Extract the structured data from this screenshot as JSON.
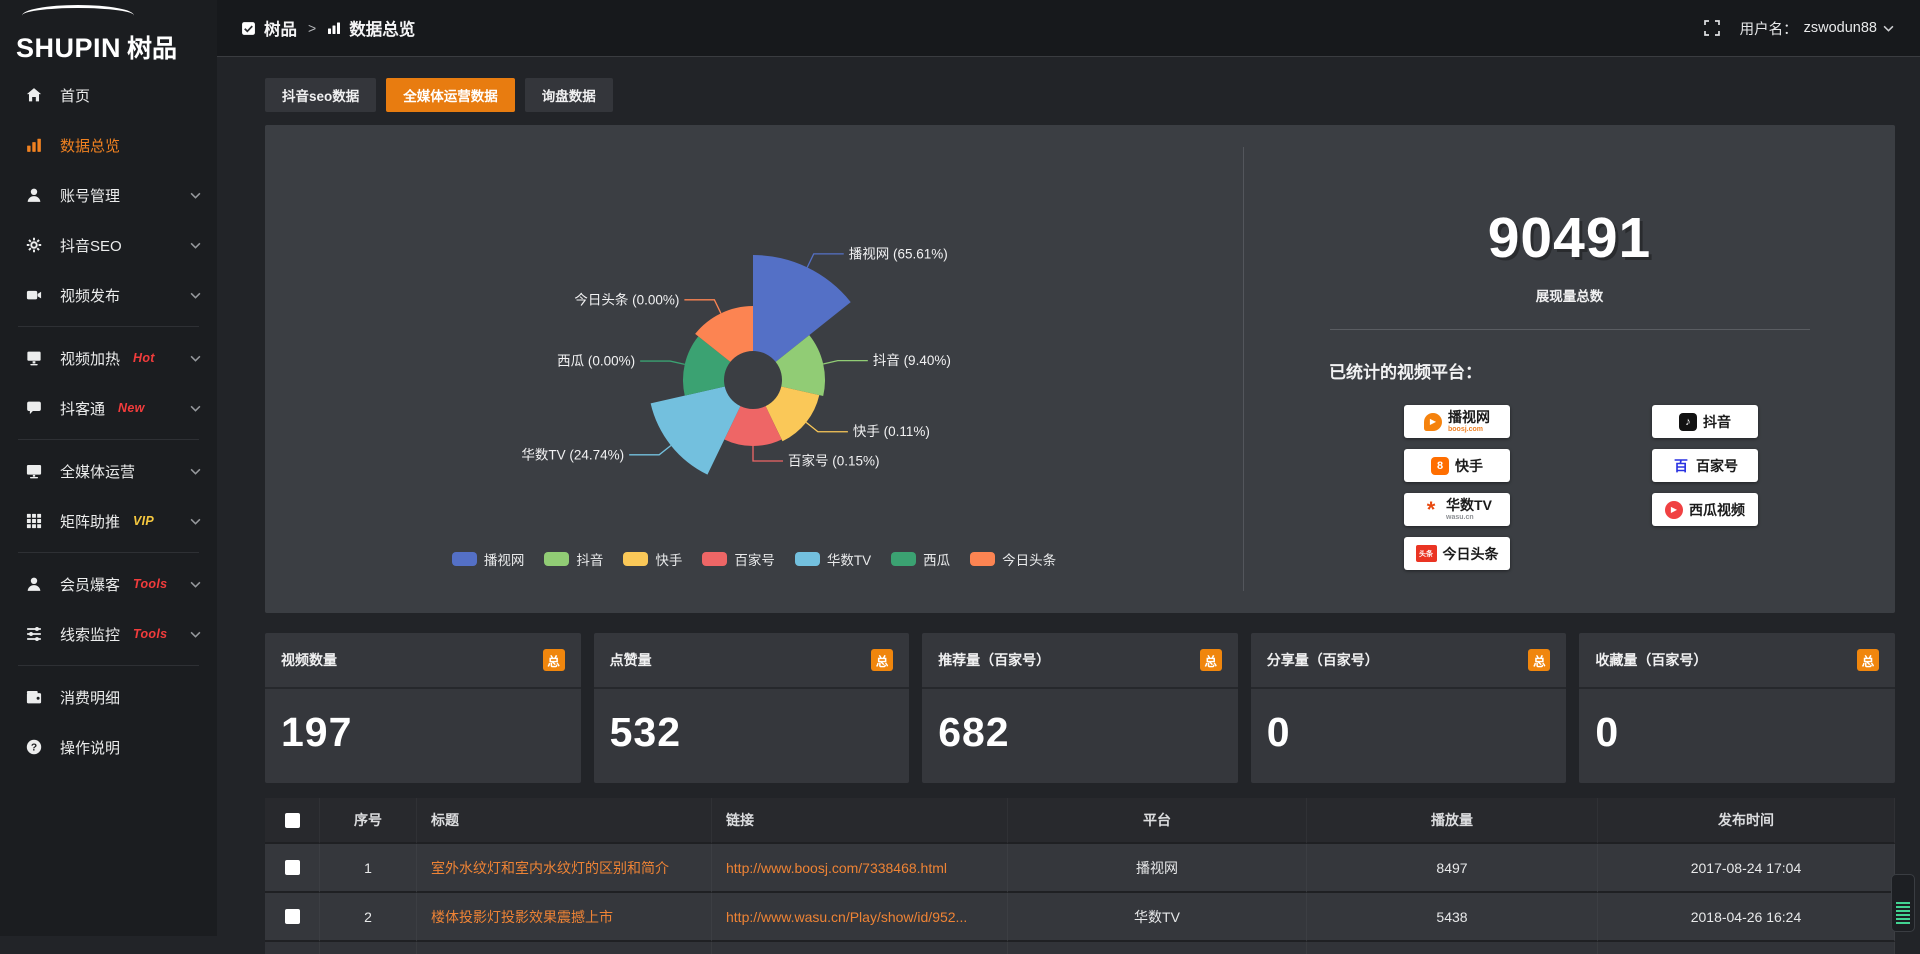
{
  "brand": {
    "logo_en": "SHUPIN",
    "logo_cn": "树品"
  },
  "header": {
    "breadcrumb_root": "树品",
    "breadcrumb_sep": ">",
    "breadcrumb_current": "数据总览",
    "user_label": "用户名：",
    "username": "zswodun88"
  },
  "sidebar": {
    "items": [
      {
        "key": "home",
        "icon": "home",
        "label": "首页"
      },
      {
        "key": "data-overview",
        "icon": "chart",
        "label": "数据总览",
        "active": true
      },
      {
        "key": "account-manage",
        "icon": "user",
        "label": "账号管理",
        "expand": true
      },
      {
        "key": "douyin-seo",
        "icon": "gear",
        "label": "抖音SEO",
        "expand": true
      },
      {
        "key": "video-publish",
        "icon": "video",
        "label": "视频发布",
        "expand": true,
        "divider_after": true
      },
      {
        "key": "video-heat",
        "icon": "heat",
        "label": "视频加热",
        "badge": "Hot",
        "badge_color": "#f23c3c",
        "expand": true
      },
      {
        "key": "douketong",
        "icon": "comment",
        "label": "抖客通",
        "badge": "New",
        "badge_color": "#f23c3c",
        "expand": true,
        "divider_after": true
      },
      {
        "key": "media-operation",
        "icon": "monitor",
        "label": "全媒体运营",
        "expand": true
      },
      {
        "key": "matrix-boost",
        "icon": "matrix",
        "label": "矩阵助推",
        "badge": "VIP",
        "badge_color": "#f6c83f",
        "expand": true,
        "divider_after": true
      },
      {
        "key": "member-baoke",
        "icon": "member",
        "label": "会员爆客",
        "badge": "Tools",
        "badge_color": "#f23c3c",
        "expand": true
      },
      {
        "key": "clue-monitor",
        "icon": "clue",
        "label": "线索监控",
        "badge": "Tools",
        "badge_color": "#f23c3c",
        "expand": true,
        "divider_after": true
      },
      {
        "key": "consume-detail",
        "icon": "wallet",
        "label": "消费明细"
      },
      {
        "key": "operation-guide",
        "icon": "question",
        "label": "操作说明"
      }
    ]
  },
  "tabs": [
    {
      "label": "抖音seo数据",
      "active": false
    },
    {
      "label": "全媒体运营数据",
      "active": true
    },
    {
      "label": "询盘数据",
      "active": false
    }
  ],
  "chart_data": {
    "type": "pie",
    "subtype": "nightingale-rose",
    "inner_radius_hint": 29,
    "series": [
      {
        "name": "播视网",
        "value": 65.61,
        "color": "#5470c6",
        "radius_hint": 125
      },
      {
        "name": "抖音",
        "value": 9.4,
        "color": "#91cc75",
        "radius_hint": 72
      },
      {
        "name": "快手",
        "value": 0.11,
        "color": "#fac858",
        "radius_hint": 68
      },
      {
        "name": "百家号",
        "value": 0.15,
        "color": "#ee6666",
        "radius_hint": 66
      },
      {
        "name": "华数TV",
        "value": 24.74,
        "color": "#73c0de",
        "radius_hint": 105
      },
      {
        "name": "西瓜",
        "value": 0.0,
        "color": "#3ba272",
        "radius_hint": 70
      },
      {
        "name": "今日头条",
        "value": 0.0,
        "color": "#fc8452",
        "radius_hint": 74
      }
    ],
    "legend": [
      "播视网",
      "抖音",
      "快手",
      "百家号",
      "华数TV",
      "西瓜",
      "今日头条"
    ],
    "label_format": "{name} ({value}%)"
  },
  "summary": {
    "total_value": "90491",
    "total_label": "展现量总数",
    "platforms_label": "已统计的视频平台：",
    "platforms_left": [
      {
        "key": "boosj",
        "name": "播视网",
        "sub": "boosj.com",
        "icon_glyph": "▶"
      },
      {
        "key": "kuaishou",
        "name": "快手",
        "icon_glyph": "8"
      },
      {
        "key": "wasu",
        "name": "华数TV",
        "sub": "wasu.cn",
        "icon_glyph": "*"
      },
      {
        "key": "toutiao",
        "name": "今日头条",
        "icon_glyph": "头条"
      }
    ],
    "platforms_right": [
      {
        "key": "douyin",
        "name": "抖音",
        "icon_glyph": "♪"
      },
      {
        "key": "baijiahao",
        "name": "百家号",
        "icon_glyph": "百"
      },
      {
        "key": "xigua",
        "name": "西瓜视频",
        "icon_glyph": "▶"
      }
    ]
  },
  "stat_cards": [
    {
      "key": "video-count",
      "title": "视频数量",
      "badge": "总",
      "value": "197"
    },
    {
      "key": "like-count",
      "title": "点赞量",
      "badge": "总",
      "value": "532"
    },
    {
      "key": "recommend-count",
      "title": "推荐量（百家号）",
      "badge": "总",
      "value": "682"
    },
    {
      "key": "share-count",
      "title": "分享量（百家号）",
      "badge": "总",
      "value": "0"
    },
    {
      "key": "favorite-count",
      "title": "收藏量（百家号）",
      "badge": "总",
      "value": "0"
    }
  ],
  "table": {
    "headers": [
      "序号",
      "标题",
      "链接",
      "平台",
      "播放量",
      "发布时间"
    ],
    "rows": [
      {
        "num": "1",
        "title": "室外水纹灯和室内水纹灯的区别和简介",
        "link": "http://www.boosj.com/7338468.html",
        "platform": "播视网",
        "plays": "8497",
        "time": "2017-08-24 17:04"
      },
      {
        "num": "2",
        "title": "楼体投影灯投影效果震撼上市",
        "link": "http://www.wasu.cn/Play/show/id/952...",
        "platform": "华数TV",
        "plays": "5438",
        "time": "2018-04-26 16:24"
      }
    ]
  }
}
